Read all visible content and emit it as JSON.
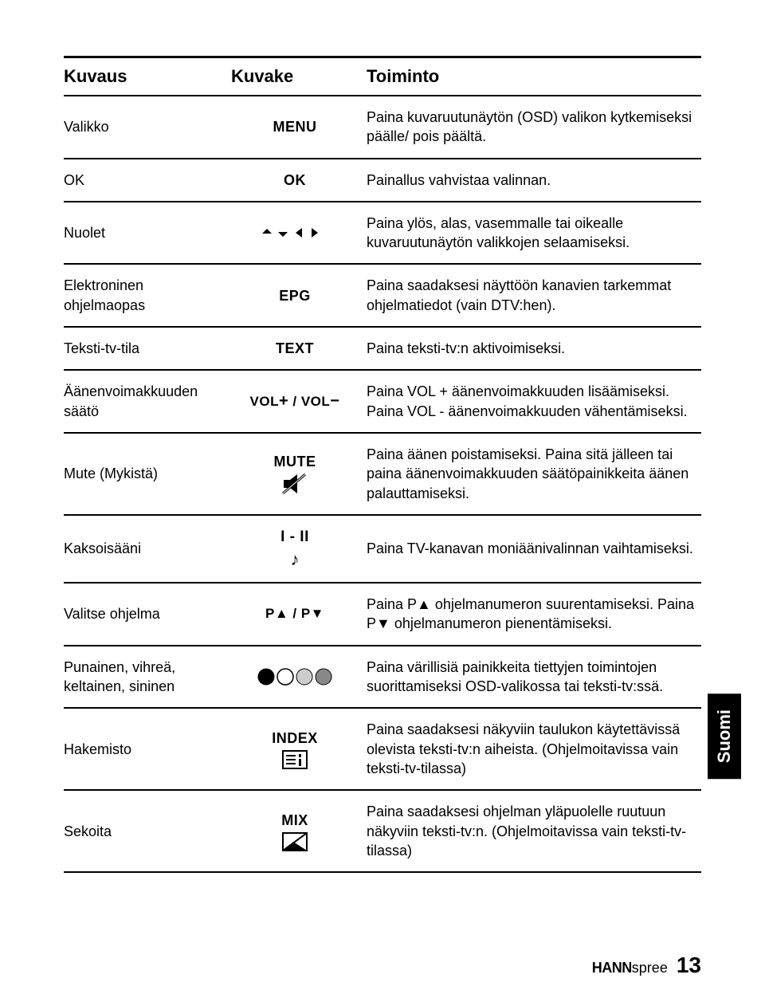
{
  "header": {
    "col1": "Kuvaus",
    "col2": "Kuvake",
    "col3": "Toiminto"
  },
  "rows": [
    {
      "desc": "Valikko",
      "icon_type": "text",
      "icon_label": "MENU",
      "func": "Paina kuvaruutunäytön (OSD) valikon kytkemiseksi päälle/ pois päältä."
    },
    {
      "desc": "OK",
      "icon_type": "text",
      "icon_label": "OK",
      "func": "Painallus vahvistaa valinnan."
    },
    {
      "desc": "Nuolet",
      "icon_type": "arrows",
      "icon_label": "",
      "func": "Paina ylös, alas, vasemmalle tai oikealle kuvaruutunäytön valikkojen selaamiseksi."
    },
    {
      "desc": "Elektroninen ohjelmaopas",
      "icon_type": "text",
      "icon_label": "EPG",
      "func": "Paina saadaksesi näyttöön kanavien tarkemmat ohjelmatiedot (vain DTV:hen)."
    },
    {
      "desc": "Teksti-tv-tila",
      "icon_type": "text",
      "icon_label": "TEXT",
      "func": "Paina teksti-tv:n aktivoimiseksi."
    },
    {
      "desc": "Äänenvoimakkuuden säätö",
      "icon_type": "vol",
      "icon_label": "VOL+ / VOL−",
      "func": "Paina VOL + äänenvoimakkuuden lisäämiseksi. Paina VOL - äänenvoimakkuuden vähentämiseksi."
    },
    {
      "desc": "Mute (Mykistä)",
      "icon_type": "mute",
      "icon_label": "MUTE",
      "func": "Paina äänen poistamiseksi. Paina sitä jälleen tai paina äänenvoimakkuuden säätöpainikkeita äänen palauttamiseksi."
    },
    {
      "desc": "Kaksoisääni",
      "icon_type": "dual",
      "icon_label": "I - II",
      "func": "Paina TV-kanavan moniäänivalinnan vaihtamiseksi."
    },
    {
      "desc": "Valitse ohjelma",
      "icon_type": "prog",
      "icon_label": "P▲ / P▼",
      "func_html": "Paina P▲ ohjelmanumeron suurentamiseksi. Paina P▼ ohjelmanumeron pienentämiseksi."
    },
    {
      "desc": "Punainen, vihreä, keltainen, sininen",
      "icon_type": "colors",
      "icon_label": "",
      "func": "Paina värillisiä painikkeita tiettyjen toimintojen suorittamiseksi OSD-valikossa tai teksti-tv:ssä."
    },
    {
      "desc": "Hakemisto",
      "icon_type": "index",
      "icon_label": "INDEX",
      "func": "Paina saadaksesi näkyviin taulukon käytettävissä olevista teksti-tv:n aiheista. (Ohjelmoitavissa vain teksti-tv-tilassa)"
    },
    {
      "desc": "Sekoita",
      "icon_type": "mix",
      "icon_label": "MIX",
      "func": "Paina saadaksesi ohjelman yläpuolelle ruutuun näkyviin teksti-tv:n. (Ohjelmoitavissa vain teksti-tv-tilassa)"
    }
  ],
  "color_dots": [
    "#000000",
    "#ffffff",
    "#cccccc",
    "#888888"
  ],
  "side_tab": "Suomi",
  "footer": {
    "brand1": "HANN",
    "brand2": "spree",
    "page": "13"
  }
}
